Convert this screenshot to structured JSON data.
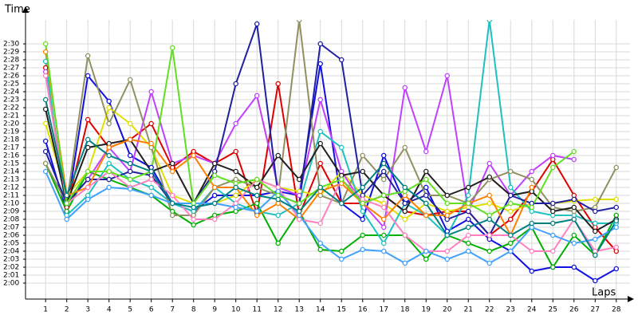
{
  "chart_data": {
    "type": "line",
    "y_label": "Time",
    "x_label": "Laps",
    "grid": true,
    "x": [
      1,
      2,
      3,
      4,
      5,
      6,
      7,
      8,
      9,
      10,
      11,
      12,
      13,
      14,
      15,
      16,
      17,
      18,
      19,
      20,
      21,
      22,
      23,
      24,
      25,
      26,
      27,
      28
    ],
    "xlim": [
      0.05,
      28.65
    ],
    "xticks": [
      1,
      2,
      3,
      4,
      5,
      6,
      7,
      8,
      9,
      10,
      11,
      12,
      13,
      14,
      15,
      16,
      17,
      18,
      19,
      20,
      21,
      22,
      23,
      24,
      25,
      26,
      27,
      28
    ],
    "ylim": [
      118,
      153
    ],
    "yticks": [
      {
        "value": 120,
        "label": "2:00"
      },
      {
        "value": 121,
        "label": "2:01"
      },
      {
        "value": 122,
        "label": "2:02"
      },
      {
        "value": 123,
        "label": "2:03"
      },
      {
        "value": 124,
        "label": "2:04"
      },
      {
        "value": 125,
        "label": "2:05"
      },
      {
        "value": 126,
        "label": "2:06"
      },
      {
        "value": 127,
        "label": "2:07"
      },
      {
        "value": 128,
        "label": "2:08"
      },
      {
        "value": 129,
        "label": "2:09"
      },
      {
        "value": 130,
        "label": "2:10"
      },
      {
        "value": 131,
        "label": "2:11"
      },
      {
        "value": 132,
        "label": "2:12"
      },
      {
        "value": 133,
        "label": "2:13"
      },
      {
        "value": 134,
        "label": "2:14"
      },
      {
        "value": 135,
        "label": "2:15"
      },
      {
        "value": 136,
        "label": "2:16"
      },
      {
        "value": 137,
        "label": "2:17"
      },
      {
        "value": 138,
        "label": "2:18"
      },
      {
        "value": 139,
        "label": "2:19"
      },
      {
        "value": 140,
        "label": "2:20"
      },
      {
        "value": 141,
        "label": "2:21"
      },
      {
        "value": 142,
        "label": "2:22"
      },
      {
        "value": 143,
        "label": "2:23"
      },
      {
        "value": 144,
        "label": "2:24"
      },
      {
        "value": 145,
        "label": "2:25"
      },
      {
        "value": 146,
        "label": "2:26"
      },
      {
        "value": 147,
        "label": "2:27"
      },
      {
        "value": 148,
        "label": "2:28"
      },
      {
        "value": 149,
        "label": "2:29"
      },
      {
        "value": 150,
        "label": "2:30"
      }
    ],
    "series": [
      {
        "color": "#1010e0",
        "values": [
          137.8,
          129,
          146,
          142.8,
          136,
          134.5,
          130,
          129,
          131,
          131,
          131,
          131.5,
          131,
          147.5,
          130,
          128,
          136,
          130,
          132,
          126.5,
          128,
          125.5,
          124,
          121.5,
          122,
          122,
          120.3,
          121.8
        ]
      },
      {
        "color": "#e00000",
        "values": [
          147,
          129.5,
          140.5,
          137,
          138,
          140,
          134.5,
          136.5,
          135,
          136.5,
          128.7,
          145,
          128.5,
          135,
          130,
          130,
          131,
          129,
          128.5,
          129,
          129,
          126,
          128,
          131.5,
          135.5,
          131,
          127,
          124
        ]
      },
      {
        "color": "#00b000",
        "values": [
          135,
          129,
          134,
          133,
          132,
          131,
          129,
          127.3,
          128.5,
          129,
          130,
          125,
          129,
          124.2,
          124,
          126,
          126,
          126,
          123,
          126,
          125,
          124,
          125,
          127,
          122,
          126,
          123.5,
          128.5
        ]
      },
      {
        "color": "#e0e000",
        "values": [
          140,
          131,
          134,
          142,
          140,
          137,
          131,
          130,
          130,
          131,
          133,
          132,
          131.5,
          131,
          134,
          131,
          130,
          128,
          130,
          129,
          129.5,
          130,
          129,
          130,
          130,
          130.3,
          130.5,
          130.5
        ]
      },
      {
        "color": "#c040ff",
        "values": [
          146.5,
          130,
          133,
          137,
          134,
          144,
          135,
          136,
          135,
          140,
          143.5,
          132,
          131,
          143,
          134,
          130,
          127,
          144.5,
          136.5,
          146,
          129,
          135,
          131,
          134,
          136,
          135.5,
          null,
          null
        ]
      },
      {
        "color": "#20c0c0",
        "values": [
          147.8,
          128.5,
          131,
          135,
          133,
          132,
          130,
          129,
          132,
          130,
          129,
          128.5,
          130,
          139,
          137,
          129,
          125,
          130,
          128.5,
          126,
          131,
          153,
          132,
          129,
          128.5,
          128.5,
          127.5,
          127.5
        ]
      },
      {
        "color": "#909060",
        "values": [
          135,
          130,
          148.5,
          140,
          145.5,
          137,
          128.5,
          128.5,
          132,
          133,
          132,
          131,
          153,
          131,
          130,
          136,
          133,
          137,
          131,
          131,
          130,
          133,
          134,
          133,
          129.5,
          129,
          129.5,
          134.5
        ]
      },
      {
        "color": "#202020",
        "values": [
          141.8,
          130,
          137,
          137.5,
          138,
          134,
          135,
          130,
          135,
          134,
          132,
          136,
          133,
          137.5,
          133.5,
          134,
          131,
          129,
          134,
          131,
          132,
          133.3,
          131,
          131.5,
          129,
          129.5,
          126.5,
          128
        ]
      },
      {
        "color": "#2020a0",
        "values": [
          136.5,
          130,
          133,
          133,
          134,
          133.5,
          130,
          130,
          134,
          145,
          152.5,
          131,
          130,
          150,
          148,
          131,
          134,
          130,
          131,
          128,
          129,
          126,
          131,
          130,
          130,
          130.5,
          129,
          129.5
        ]
      },
      {
        "color": "#ff8000",
        "values": [
          149,
          131,
          132,
          137,
          138,
          137.5,
          134,
          136,
          132,
          132,
          128.5,
          130,
          128,
          131.5,
          132.5,
          130,
          128,
          131,
          128.5,
          128.5,
          130,
          131,
          126,
          132,
          null,
          null,
          null,
          null
        ]
      },
      {
        "color": "#ff80c0",
        "values": [
          146,
          130,
          132,
          134,
          132,
          133,
          131,
          128,
          128,
          130,
          133,
          132,
          128,
          127.5,
          133,
          130.5,
          129.5,
          126,
          124,
          124,
          126,
          126,
          126,
          124,
          124,
          128,
          124,
          124.5
        ]
      },
      {
        "color": "#40a0ff",
        "values": [
          134,
          128,
          130.5,
          132,
          131.8,
          131,
          130,
          130,
          130,
          129.5,
          129,
          131.5,
          128.5,
          125,
          123,
          124.2,
          124,
          122.5,
          124,
          123,
          124,
          122.5,
          124,
          127,
          126,
          125,
          125.5,
          127
        ]
      },
      {
        "color": "#60e020",
        "values": [
          150,
          130,
          134,
          134,
          133,
          134,
          149.5,
          130,
          133.5,
          132.5,
          133,
          131,
          130,
          132,
          133,
          130,
          131,
          131.5,
          133,
          130,
          130,
          128.5,
          130,
          129.5,
          134.5,
          136.5,
          null,
          null
        ]
      },
      {
        "color": "#008080",
        "values": [
          143,
          131,
          138,
          136,
          135,
          134,
          130,
          129.5,
          130,
          132,
          131,
          130.5,
          129,
          132,
          130,
          132,
          135,
          132,
          130,
          126,
          127,
          128,
          126,
          127.5,
          127.5,
          128,
          123.5,
          127.8
        ]
      }
    ]
  }
}
